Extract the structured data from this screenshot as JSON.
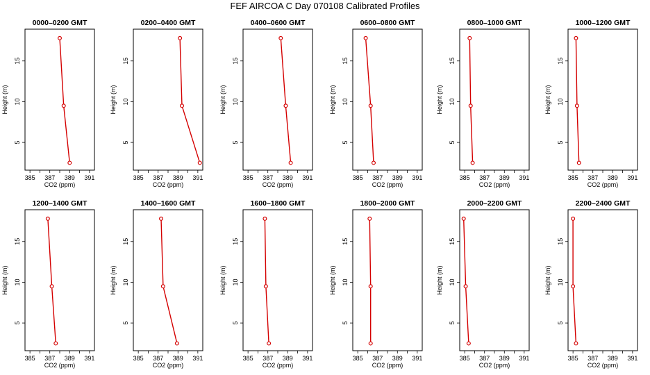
{
  "title": "FEF AIRCOA C  Day 070108  Calibrated Profiles",
  "chart_data": {
    "type": "line",
    "panel_count": 12,
    "layout": "2 rows x 6 columns",
    "xlabel": "CO2 (ppm)",
    "ylabel": "Height (m)",
    "xlim": [
      384.5,
      391.5
    ],
    "ylim": [
      1.6,
      18.9
    ],
    "xticks": [
      385,
      386,
      387,
      388,
      389,
      390,
      391
    ],
    "xtick_labels": [
      "385",
      "387",
      "389",
      "391"
    ],
    "yticks": [
      5,
      10,
      15
    ],
    "line_color": "#d40000",
    "marker": "open-circle",
    "grid": false,
    "legend": "none",
    "heights": [
      17.8,
      9.5,
      2.5
    ],
    "panels": [
      {
        "title": "0000–0200 GMT",
        "x": [
          388.0,
          388.4,
          389.0
        ]
      },
      {
        "title": "0200–0400 GMT",
        "x": [
          389.2,
          389.4,
          391.2
        ]
      },
      {
        "title": "0400–0600 GMT",
        "x": [
          388.3,
          388.8,
          389.3
        ]
      },
      {
        "title": "0600–0800 GMT",
        "x": [
          385.8,
          386.3,
          386.6
        ]
      },
      {
        "title": "0800–1000 GMT",
        "x": [
          385.5,
          385.6,
          385.8
        ]
      },
      {
        "title": "1000–1200 GMT",
        "x": [
          385.3,
          385.4,
          385.6
        ]
      },
      {
        "title": "1200–1400 GMT",
        "x": [
          386.8,
          387.2,
          387.6
        ]
      },
      {
        "title": "1400–1600 GMT",
        "x": [
          387.3,
          387.5,
          388.9
        ]
      },
      {
        "title": "1600–1800 GMT",
        "x": [
          386.7,
          386.8,
          387.1
        ]
      },
      {
        "title": "1800–2000 GMT",
        "x": [
          386.2,
          386.3,
          386.3
        ]
      },
      {
        "title": "2000–2200 GMT",
        "x": [
          384.9,
          385.1,
          385.4
        ]
      },
      {
        "title": "2200–2400 GMT",
        "x": [
          385.0,
          385.0,
          385.3
        ]
      }
    ]
  }
}
